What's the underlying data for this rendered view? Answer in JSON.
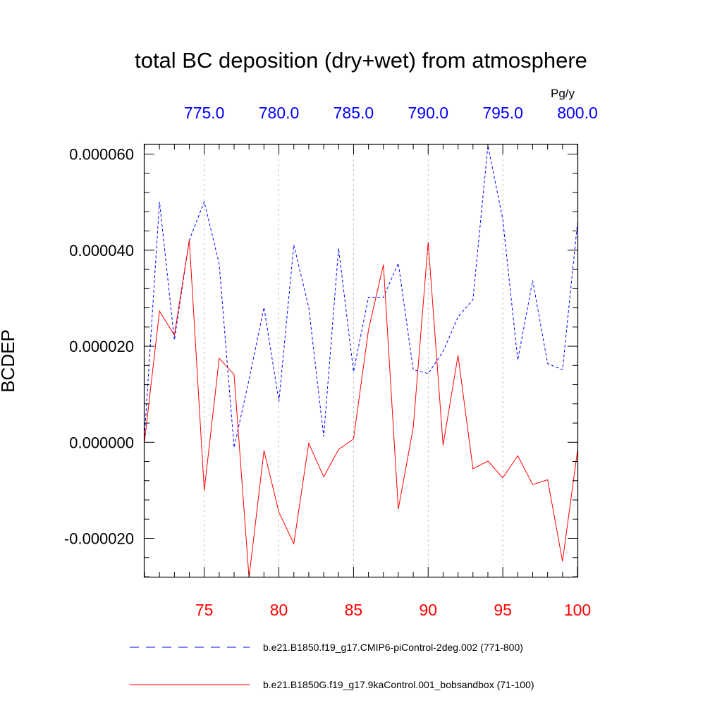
{
  "chart_data": {
    "type": "line",
    "title": "total BC deposition (dry+wet) from atmosphere",
    "ylabel": "BCDEP",
    "units": "Pg/y",
    "ylim": [
      -2.8e-05,
      6.2e-05
    ],
    "y_ticks": [
      -2e-05,
      0,
      2e-05,
      4e-05,
      6e-05
    ],
    "y_tick_labels": [
      "-0.000020",
      "0.000000",
      "0.000020",
      "0.000040",
      "0.000060"
    ],
    "top_axis": {
      "range": [
        771,
        800
      ],
      "ticks": [
        775,
        780,
        785,
        790,
        795,
        800
      ],
      "tick_labels": [
        "775.0",
        "780.0",
        "785.0",
        "790.0",
        "795.0",
        "800.0"
      ],
      "color": "#0000ff"
    },
    "bottom_axis": {
      "range": [
        71,
        100
      ],
      "ticks": [
        75,
        80,
        85,
        90,
        95,
        100
      ],
      "tick_labels": [
        "75",
        "80",
        "85",
        "90",
        "95",
        "100"
      ],
      "color": "#ff0000"
    },
    "grid_x": [
      75,
      80,
      85,
      90,
      95
    ],
    "series": [
      {
        "name": "b.e21.B1850.f19_g17.CMIP6-piControl-2deg.002 (771-800)",
        "color": "#0000ff",
        "dash": true,
        "x": [
          71,
          72,
          73,
          74,
          75,
          76,
          77,
          78,
          79,
          80,
          81,
          82,
          83,
          84,
          85,
          86,
          87,
          88,
          89,
          90,
          91,
          92,
          93,
          94,
          95,
          96,
          97,
          98,
          99,
          100
        ],
        "values": [
          1.4e-06,
          5.01e-05,
          2.13e-05,
          4.21e-05,
          5.01e-05,
          3.71e-05,
          -1.1e-06,
          1.31e-05,
          2.81e-05,
          8.5e-06,
          4.11e-05,
          2.81e-05,
          1.2e-06,
          4.04e-05,
          1.47e-05,
          3.02e-05,
          3.02e-05,
          3.73e-05,
          1.51e-05,
          1.43e-05,
          1.89e-05,
          2.61e-05,
          2.97e-05,
          6.18e-05,
          4.64e-05,
          1.71e-05,
          3.37e-05,
          1.64e-05,
          1.51e-05,
          4.56e-05
        ]
      },
      {
        "name": "b.e21.B1850G.f19_g17.9kaControl.001_bobsandbox (71-100)",
        "color": "#ff0000",
        "dash": false,
        "x": [
          71,
          72,
          73,
          74,
          75,
          76,
          77,
          78,
          79,
          80,
          81,
          82,
          83,
          84,
          85,
          86,
          87,
          88,
          89,
          90,
          91,
          92,
          93,
          94,
          95,
          96,
          97,
          98,
          99,
          100
        ],
        "values": [
          2e-07,
          2.73e-05,
          2.23e-05,
          4.21e-05,
          -1e-05,
          1.75e-05,
          1.41e-05,
          -2.82e-05,
          -1.7e-06,
          -1.46e-05,
          -2.11e-05,
          -2e-07,
          -7.2e-06,
          -1.5e-06,
          7e-07,
          2.34e-05,
          3.7e-05,
          -1.39e-05,
          3.1e-06,
          4.17e-05,
          -6e-07,
          1.81e-05,
          -5.5e-06,
          -3.9e-06,
          -7.4e-06,
          -2.8e-06,
          -8.8e-06,
          -7.8e-06,
          -2.48e-05,
          -1.8e-06
        ]
      }
    ]
  }
}
